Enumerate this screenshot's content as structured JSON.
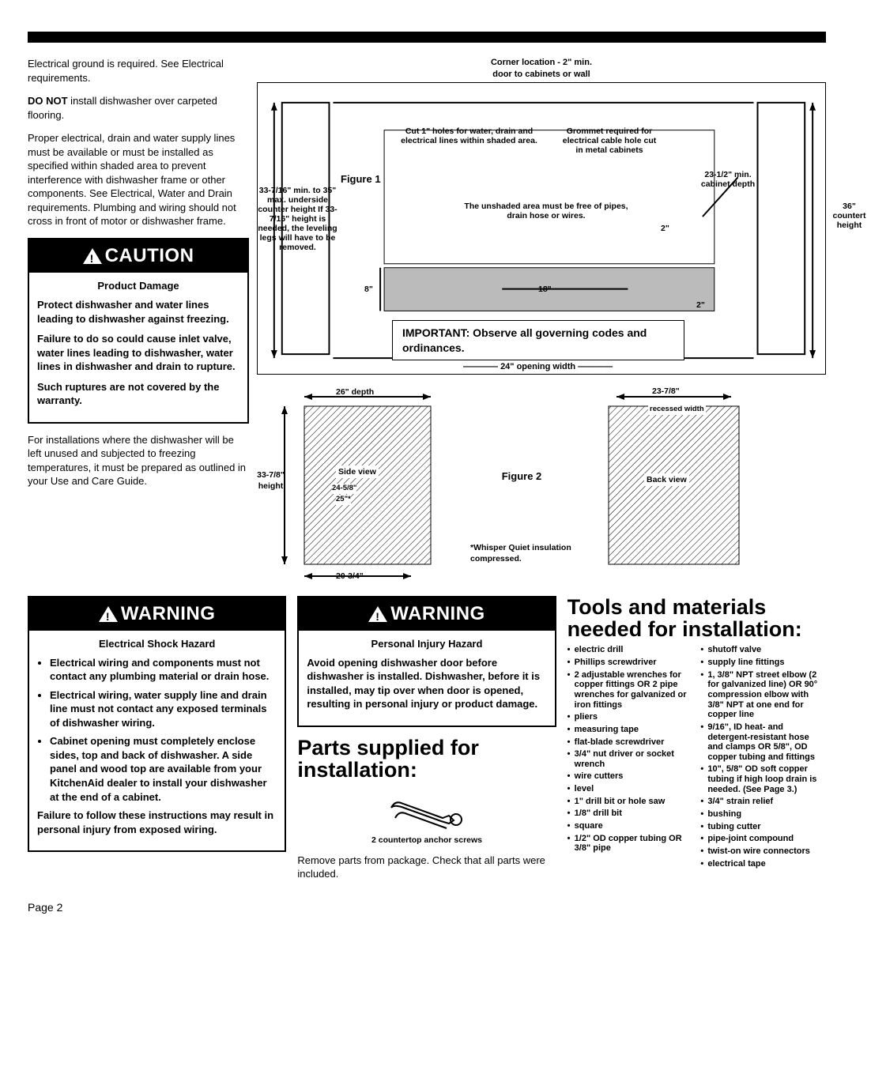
{
  "page_number": "Page 2",
  "intro": {
    "p1": "Electrical ground is required. See Electrical requirements.",
    "p2_bold": "DO NOT",
    "p2_rest": " install dishwasher over carpeted flooring.",
    "p3": "Proper electrical, drain and water supply lines must be available or must be installed as specified within shaded area to prevent interference with dishwasher frame or other components. See Electrical, Water and Drain requirements. Plumbing and wiring should not cross in front of motor or dishwasher frame."
  },
  "caution": {
    "head": "CAUTION",
    "sub": "Product Damage",
    "p1": "Protect dishwasher and water lines leading to dishwasher against freezing.",
    "p2": "Failure to do so could cause inlet valve, water lines leading to dishwasher, water lines in dishwasher and drain to rupture.",
    "p3": "Such ruptures are not covered by the warranty."
  },
  "after_caution": "For installations where the dishwasher will be left unused and subjected to freezing temperatures, it must be prepared as outlined in your Use and Care Guide.",
  "fig1": {
    "label": "Figure 1",
    "corner": "Corner location - 2\" min.",
    "door": "door to cabinets or wall",
    "cut_holes": "Cut 1\" holes for water, drain and electrical lines within shaded area.",
    "grommet": "Grommet required for electrical cable hole cut in metal cabinets",
    "min_depth": "23-1/2\" min. cabinet depth",
    "counter_height": "36\" countert height",
    "min_height": "33-7/16\" min. to 35\" max. underside counter height If 33-7/16\" height is needed, the leveling legs will have to be removed.",
    "unshaded": "The unshaded area must be free of pipes, drain hose or wires.",
    "eight": "8\"",
    "eighteen": "18\"",
    "two_a": "2\"",
    "two_b": "2\"",
    "important": "IMPORTANT: Observe all governing codes and ordinances.",
    "opening_width": "24\" opening width"
  },
  "fig2": {
    "label": "Figure 2",
    "depth": "26\" depth",
    "height": "33-7/8\" height",
    "side": "Side view",
    "d245": "24-5/8\"",
    "d25": "25\"*",
    "d203": "20-3/4\"",
    "recessed": "23-7/8\"",
    "recessed_label": "recessed width",
    "back": "Back view",
    "whisper": "*Whisper Quiet insulation compressed."
  },
  "warning1": {
    "head": "WARNING",
    "sub": "Electrical Shock Hazard",
    "li1": "Electrical wiring and components must not contact any plumbing material or drain hose.",
    "li2": "Electrical wiring, water supply line and drain line must not contact any exposed terminals of dishwasher wiring.",
    "li3": "Cabinet opening must completely enclose sides, top and back of dishwasher. A side panel and wood top are available from your KitchenAid dealer to install your dishwasher at the end of a cabinet.",
    "tail": "Failure to follow these instructions may result in personal injury from exposed wiring."
  },
  "warning2": {
    "head": "WARNING",
    "sub": "Personal Injury Hazard",
    "p1": "Avoid opening dishwasher door before dishwasher is installed. Dishwasher, before it is installed, may tip over when door is opened, resulting in personal injury or product damage."
  },
  "parts": {
    "title": "Parts supplied for installation:",
    "anchor": "2 countertop anchor screws",
    "p1": "Remove parts from package. Check that all parts were included."
  },
  "tools": {
    "title": "Tools and materials needed for installation:",
    "left": [
      "electric drill",
      "Phillips screwdriver",
      "2 adjustable wrenches for copper fittings OR 2 pipe wrenches for galvanized or iron fittings",
      "pliers",
      "measuring tape",
      "flat-blade screwdriver",
      "3/4\" nut driver or socket wrench",
      "wire cutters",
      "level",
      "1\" drill bit or hole saw",
      "1/8\" drill bit",
      "square",
      "1/2\" OD copper tubing OR 3/8\" pipe"
    ],
    "right": [
      "shutoff valve",
      "supply line fittings",
      "1, 3/8\" NPT street elbow (2 for galvanized line) OR 90° compression elbow with 3/8\" NPT at one end for copper line",
      "9/16\", ID heat- and detergent-resistant hose and clamps OR 5/8\", OD copper tubing and fittings",
      "10\", 5/8\" OD soft copper tubing if high loop drain is needed. (See Page 3.)",
      "3/4\" strain relief",
      "bushing",
      "tubing cutter",
      "pipe-joint compound",
      "twist-on wire connectors",
      "electrical tape"
    ]
  }
}
